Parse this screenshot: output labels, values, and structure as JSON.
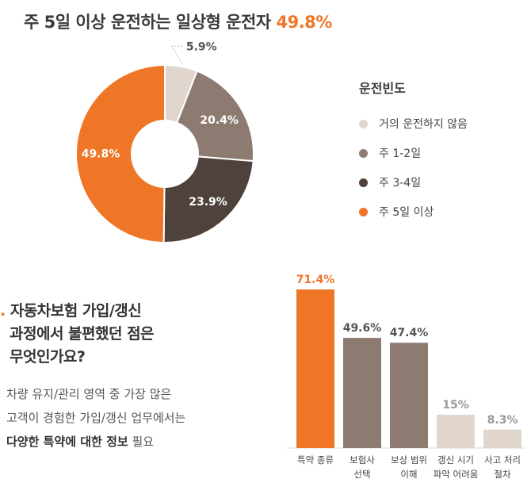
{
  "headline": {
    "prefix": "주 5일 이상 운전하는 일상형 운전자",
    "highlight": "49.8%"
  },
  "legend": {
    "title": "운전빈도"
  },
  "colors": {
    "accent": "#ef7527",
    "light": "#e0d6ce",
    "mid": "#8d7b72",
    "dark": "#4f423d"
  },
  "question": {
    "marker": ".",
    "lines": [
      "자동차보험 가입/갱신",
      "과정에서 불편했던 점은",
      "무엇인가요?"
    ]
  },
  "description": {
    "line1": "차량 유지/관리 영역 중 가장 많은",
    "line2": "고객이 경험한 가입/갱신 업무에서는",
    "line3_bold": "다양한 특약에 대한 정보",
    "line3_rest": " 필요"
  },
  "chart_data": [
    {
      "type": "pie",
      "title": "",
      "series": [
        {
          "name": "거의 운전하지 않음",
          "value": 5.9,
          "label": "5.9%",
          "color": "#e0d6ce"
        },
        {
          "name": "주 1-2일",
          "value": 20.4,
          "label": "20.4%",
          "color": "#8d7b72"
        },
        {
          "name": "주 3-4일",
          "value": 23.9,
          "label": "23.9%",
          "color": "#4f423d"
        },
        {
          "name": "주 5일 이상",
          "value": 49.8,
          "label": "49.8%",
          "color": "#ef7527"
        }
      ],
      "legend_position": "right",
      "donut": true
    },
    {
      "type": "bar",
      "categories": [
        [
          "특약 종류"
        ],
        [
          "보험사",
          "선택"
        ],
        [
          "보상 범위",
          "이해"
        ],
        [
          "갱신 시기",
          "파악 어려움"
        ],
        [
          "사고 처리",
          "절차"
        ]
      ],
      "values": [
        71.4,
        49.6,
        47.4,
        15,
        8.3
      ],
      "labels": [
        "71.4%",
        "49.6%",
        "47.4%",
        "15%",
        "8.3%"
      ],
      "colors": [
        "#ef7527",
        "#8d7b72",
        "#8d7b72",
        "#e0d6ce",
        "#e0d6ce"
      ],
      "label_colors": [
        "#ef7527",
        "#555555",
        "#555555",
        "#999999",
        "#999999"
      ],
      "ylim": [
        0,
        71.4
      ],
      "grid": false
    }
  ]
}
